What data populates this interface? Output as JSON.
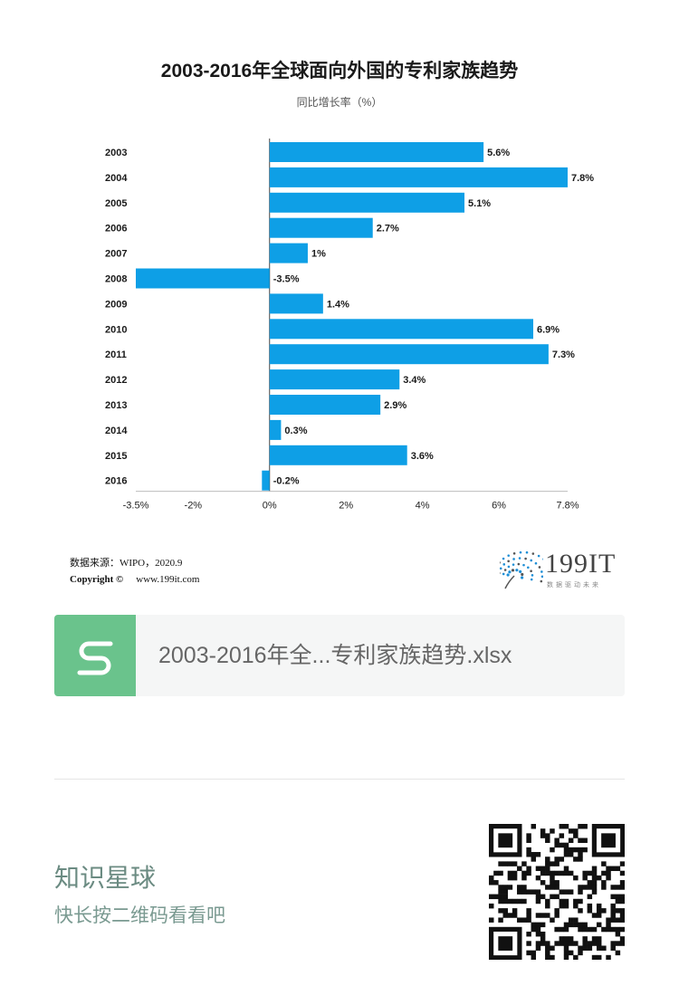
{
  "chart_data": {
    "type": "bar",
    "orientation": "horizontal",
    "title": "2003-2016年全球面向外国的专利家族趋势",
    "subtitle": "同比增长率（%）",
    "categories": [
      "2003",
      "2004",
      "2005",
      "2006",
      "2007",
      "2008",
      "2009",
      "2010",
      "2011",
      "2012",
      "2013",
      "2014",
      "2015",
      "2016"
    ],
    "values": [
      5.6,
      7.8,
      5.1,
      2.7,
      1,
      -3.5,
      1.4,
      6.9,
      7.3,
      3.4,
      2.9,
      0.3,
      3.6,
      -0.2
    ],
    "value_labels": [
      "5.6%",
      "7.8%",
      "5.1%",
      "2.7%",
      "1%",
      "-3.5%",
      "1.4%",
      "6.9%",
      "7.3%",
      "3.4%",
      "2.9%",
      "0.3%",
      "3.6%",
      "-0.2%"
    ],
    "x_ticks": [
      {
        "value": -3.5,
        "label": "-3.5%"
      },
      {
        "value": -2,
        "label": "-2%"
      },
      {
        "value": 0,
        "label": "0%"
      },
      {
        "value": 2,
        "label": "2%"
      },
      {
        "value": 4,
        "label": "4%"
      },
      {
        "value": 6,
        "label": "6%"
      },
      {
        "value": 7.8,
        "label": "7.8%"
      }
    ],
    "xlim": [
      -3.5,
      7.8
    ],
    "bar_color": "#0e9fe6",
    "grid": false
  },
  "source": {
    "line": "数据来源：WIPO，2020.9",
    "copyright_label": "Copyright ©",
    "site": "www.199it.com"
  },
  "logo": {
    "text": "199IT",
    "tagline": "数据驱动未来",
    "accent": "#1f8fd6"
  },
  "file_card": {
    "name": "2003-2016年全...专利家族趋势.xlsx",
    "icon": "spreadsheet-s-icon",
    "icon_color": "#6ac38c"
  },
  "promo": {
    "title": "知识星球",
    "subtitle": "快长按二维码看看吧",
    "qr_icon": "qr-code-icon"
  }
}
